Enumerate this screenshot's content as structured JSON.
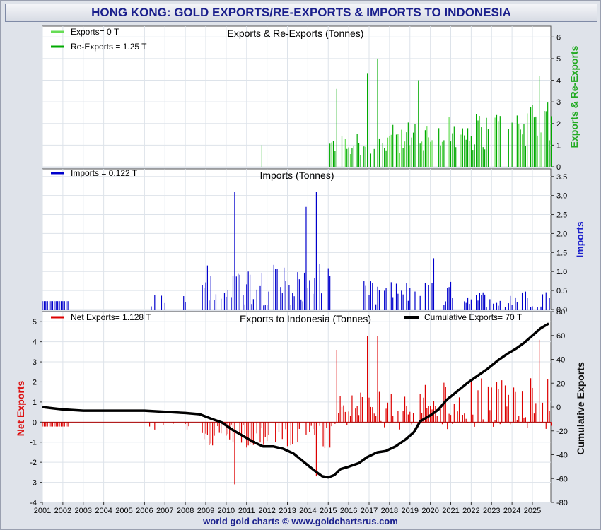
{
  "title": "HONG KONG: GOLD EXPORTS/RE-EXPORTS & IMPORTS TO INDONESIA",
  "footer": "world gold charts © www.goldchartsrus.com",
  "colors": {
    "exports": "#66dd55",
    "reexports": "#00aa00",
    "imports": "#0000cc",
    "net": "#dd0000",
    "cumulative": "#000000",
    "grid": "#dde3ea",
    "panel": "#ffffff"
  },
  "chart_data": [
    {
      "type": "bar",
      "title": "Exports & Re-Exports (Tonnes)",
      "ylabel_right": "Exports & Re-Exports",
      "ylim": [
        0,
        6.5
      ],
      "yticks": [
        "0",
        "1",
        "2",
        "3",
        "4",
        "5",
        "6"
      ],
      "legend": [
        "Exports= 0 T",
        "Re-Exports = 1.25 T"
      ],
      "peaks": [
        {
          "x": 2011.75,
          "value": 1.0
        },
        {
          "x": 2015.4,
          "value": 3.6
        },
        {
          "x": 2016.9,
          "value": 4.3
        },
        {
          "x": 2017.4,
          "value": 5.0
        },
        {
          "x": 2019.4,
          "value": 4.0
        },
        {
          "x": 2025.3,
          "value": 4.2
        }
      ]
    },
    {
      "type": "bar",
      "title": "Imports (Tonnes)",
      "ylabel_right": "Imports",
      "ylim": [
        0,
        3.7
      ],
      "yticks": [
        "0.0",
        "0.5",
        "1.0",
        "1.5",
        "2.0",
        "2.5",
        "3.0",
        "3.5"
      ],
      "legend": [
        "Imports = 0.122 T"
      ],
      "peaks": [
        {
          "x": 2010.4,
          "value": 3.1
        },
        {
          "x": 2013.9,
          "value": 2.7
        },
        {
          "x": 2014.4,
          "value": 3.1
        },
        {
          "x": 2020.2,
          "value": 1.35
        }
      ]
    },
    {
      "type": "bar+line",
      "title": "Exports to Indonesia (Tonnes)",
      "ylabel_left": "Net Exports",
      "ylabel_right": "Cumulative Exports",
      "ylim_left": [
        -4,
        5.5
      ],
      "ylim_right": [
        -80,
        80
      ],
      "yticks_left": [
        "-4",
        "-3",
        "-2",
        "-1",
        "0",
        "1",
        "2",
        "3",
        "4",
        "5"
      ],
      "yticks_right": [
        "-80",
        "-60",
        "-40",
        "-20",
        "0",
        "20",
        "40",
        "60",
        "80"
      ],
      "legend": [
        "Net Exports= 1.128 T",
        "Cumulative Exports= 70 T"
      ],
      "xticks": [
        "2001",
        "2002",
        "2003",
        "2004",
        "2005",
        "2006",
        "2007",
        "2008",
        "2009",
        "2010",
        "2011",
        "2012",
        "2013",
        "2014",
        "2015",
        "2016",
        "2017",
        "2018",
        "2019",
        "2020",
        "2021",
        "2022",
        "2023",
        "2024",
        "2025"
      ],
      "xlim": [
        2001,
        2025.9
      ],
      "cumulative": {
        "x": [
          2001,
          2001.5,
          2002,
          2003,
          2006,
          2007,
          2008,
          2008.7,
          2009.3,
          2009.8,
          2010.3,
          2010.8,
          2011.3,
          2011.8,
          2012.3,
          2012.8,
          2013.3,
          2013.8,
          2014.3,
          2014.7,
          2015.0,
          2015.3,
          2015.6,
          2016.0,
          2016.5,
          2016.9,
          2017.4,
          2017.8,
          2018.3,
          2018.8,
          2019.2,
          2019.5,
          2020.0,
          2020.4,
          2020.8,
          2021.3,
          2021.8,
          2022.3,
          2022.8,
          2023.3,
          2023.8,
          2024.2,
          2024.6,
          2025.0,
          2025.4,
          2025.8
        ],
        "y": [
          0,
          -1,
          -2,
          -3,
          -3,
          -4,
          -5,
          -6,
          -10,
          -13,
          -19,
          -24,
          -29,
          -33,
          -33,
          -35,
          -39,
          -46,
          -53,
          -58,
          -59,
          -57,
          -52,
          -50,
          -47,
          -42,
          -38,
          -37,
          -33,
          -27,
          -21,
          -12,
          -7,
          -2,
          6,
          13,
          20,
          26,
          32,
          39,
          45,
          49,
          54,
          60,
          66,
          70
        ]
      }
    }
  ]
}
